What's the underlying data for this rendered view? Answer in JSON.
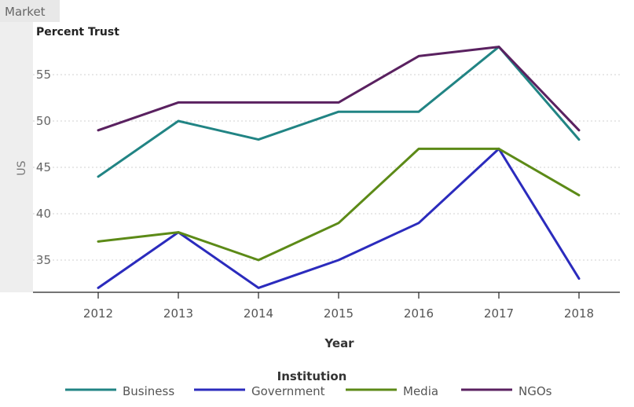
{
  "chart_data": {
    "type": "line",
    "facet_header": "Market",
    "facet_label": "US",
    "ylabel": "Percent Trust",
    "xlabel": "Year",
    "x": [
      "2012",
      "2013",
      "2014",
      "2015",
      "2016",
      "2017",
      "2018"
    ],
    "ylim": [
      32,
      60
    ],
    "yticks": [
      35,
      40,
      45,
      50,
      55
    ],
    "grid": true,
    "legend": {
      "title": "Institution",
      "position": "bottom"
    },
    "series": [
      {
        "name": "Business",
        "color": "#218484",
        "values": [
          44,
          50,
          48,
          51,
          51,
          58,
          48
        ]
      },
      {
        "name": "Government",
        "color": "#2b2bbd",
        "values": [
          32,
          38,
          32,
          35,
          39,
          47,
          33
        ]
      },
      {
        "name": "Media",
        "color": "#5c8a17",
        "values": [
          37,
          38,
          35,
          39,
          47,
          47,
          42
        ]
      },
      {
        "name": "NGOs",
        "color": "#5a2160",
        "values": [
          49,
          52,
          52,
          52,
          57,
          58,
          49
        ]
      }
    ]
  }
}
